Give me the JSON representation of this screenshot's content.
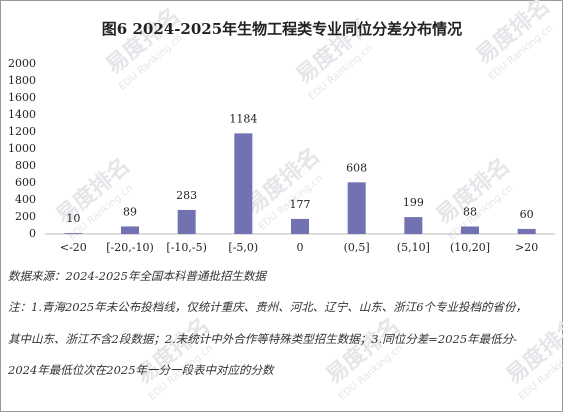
{
  "chart_data": {
    "type": "bar",
    "title": "图6 2024-2025年生物工程类专业同位分差分布情况",
    "categories": [
      "<-20",
      "[-20,-10)",
      "[-10,-5)",
      "[-5,0)",
      "0",
      "(0,5]",
      "(5,10]",
      "(10,20]",
      ">20"
    ],
    "values": [
      10,
      89,
      283,
      1184,
      177,
      608,
      199,
      88,
      60
    ],
    "color": "#7272b2",
    "ylim": [
      0,
      2000
    ],
    "yticks": [
      0,
      200,
      400,
      600,
      800,
      1000,
      1200,
      1400,
      1600,
      1800,
      2000
    ],
    "grid": false
  },
  "source": "数据来源：2024-2025年全国本科普通批招生数据",
  "notes": [
    "注：1.青海2025年未公布投档线，仅统计重庆、贵州、河北、辽宁、山东、浙江6个专业投档的省份，",
    "其中山东、浙江不含2段数据；2.未统计中外合作等特殊类型招生数据；3.同位分差=2025年最低分-",
    "2024年最低位次在2025年一分一段表中对应的分数"
  ],
  "watermark": [
    "易度排名",
    "EDU Ranking.cn"
  ]
}
